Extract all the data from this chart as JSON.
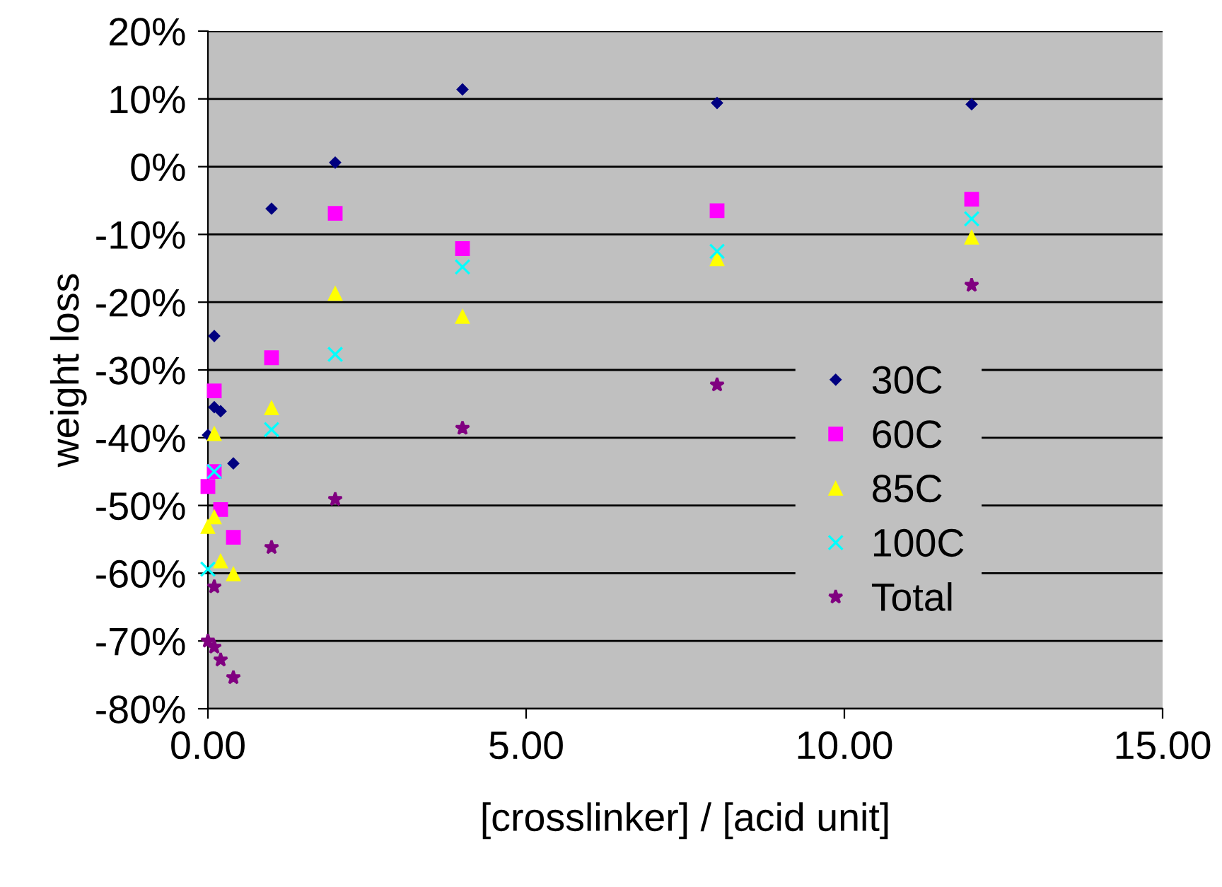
{
  "chart_data": {
    "type": "scatter",
    "xlabel": "[crosslinker] / [acid unit]",
    "ylabel": "weight loss",
    "xlim": [
      0,
      15
    ],
    "xticks": [
      {
        "value": 0,
        "label": "0.00"
      },
      {
        "value": 5,
        "label": "5.00"
      },
      {
        "value": 10,
        "label": "10.00"
      },
      {
        "value": 15,
        "label": "15.00"
      }
    ],
    "ylim": [
      -80,
      20
    ],
    "yticks": [
      {
        "value": -80,
        "label": "-80%"
      },
      {
        "value": -70,
        "label": "-70%"
      },
      {
        "value": -60,
        "label": "-60%"
      },
      {
        "value": -50,
        "label": "-50%"
      },
      {
        "value": -40,
        "label": "-40%"
      },
      {
        "value": -30,
        "label": "-30%"
      },
      {
        "value": -20,
        "label": "-20%"
      },
      {
        "value": -10,
        "label": "-10%"
      },
      {
        "value": 0,
        "label": "0%"
      },
      {
        "value": 10,
        "label": "10%"
      },
      {
        "value": 20,
        "label": "20%"
      }
    ],
    "grid": "y",
    "legend": "right",
    "series": [
      {
        "name": "30C",
        "color": "#000080",
        "marker": "diamond",
        "x": [
          0,
          0.1,
          0.1,
          0.2,
          0.4,
          1,
          2,
          4,
          8,
          12
        ],
        "values": [
          -39.6,
          -25,
          -35.5,
          -36.1,
          -43.8,
          -6.2,
          0.6,
          11.4,
          9.4,
          9.2
        ]
      },
      {
        "name": "60C",
        "color": "#ff00ff",
        "marker": "square",
        "x": [
          0,
          0.1,
          0.1,
          0.2,
          0.4,
          1,
          2,
          4,
          8,
          12
        ],
        "values": [
          -47.2,
          -33.1,
          -45,
          -50.6,
          -54.7,
          -28.2,
          -6.9,
          -12.1,
          -6.5,
          -4.8
        ]
      },
      {
        "name": "85C",
        "color": "#ffff00",
        "marker": "triangle",
        "x": [
          0,
          0.1,
          0.1,
          0.2,
          0.4,
          1,
          2,
          4,
          8,
          12
        ],
        "values": [
          -53.1,
          -39.4,
          -51.7,
          -58.2,
          -60.1,
          -35.6,
          -18.7,
          -22.1,
          -13.6,
          -10.4
        ]
      },
      {
        "name": "100C",
        "color": "#00ffff",
        "marker": "cross",
        "x": [
          0,
          0.1,
          1,
          2,
          4,
          8,
          12
        ],
        "values": [
          -59.4,
          -45,
          -38.8,
          -27.7,
          -14.8,
          -12.5,
          -7.7
        ]
      },
      {
        "name": "Total",
        "color": "#800080",
        "marker": "star",
        "x": [
          0,
          0.1,
          0.1,
          0.2,
          0.4,
          1,
          2,
          4,
          8,
          12
        ],
        "values": [
          -70,
          -62,
          -70.9,
          -72.8,
          -75.4,
          -56.2,
          -49.1,
          -38.6,
          -32.2,
          -17.5
        ]
      }
    ]
  }
}
